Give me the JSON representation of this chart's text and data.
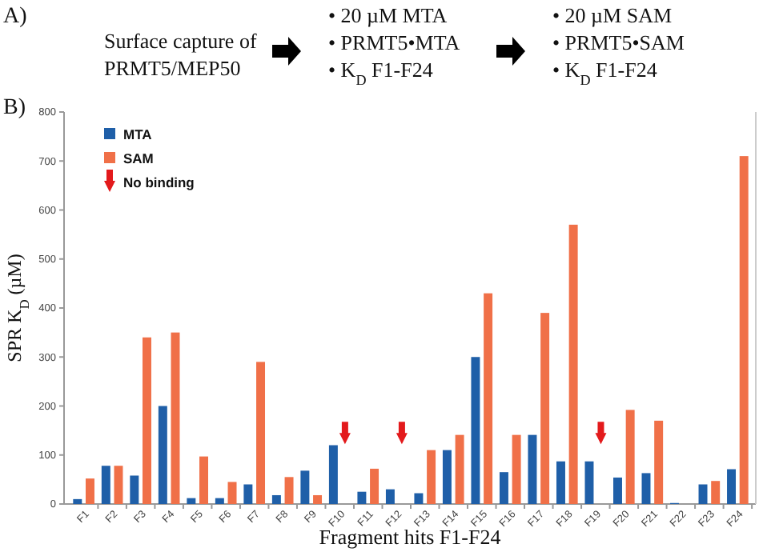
{
  "chart_data": {
    "type": "bar",
    "ylabel": "SPR K$_{D}$ (µM)",
    "xlabel": "Fragment hits F1-F24",
    "categories": [
      "F1",
      "F2",
      "F3",
      "F4",
      "F5",
      "F6",
      "F7",
      "F8",
      "F9",
      "F10",
      "F11",
      "F12",
      "F13",
      "F14",
      "F15",
      "F16",
      "F17",
      "F18",
      "F19",
      "F20",
      "F21",
      "F22",
      "F23",
      "F24"
    ],
    "series": [
      {
        "name": "MTA",
        "color": "#1f5fa8",
        "values": [
          10,
          78,
          58,
          200,
          12,
          12,
          40,
          18,
          68,
          120,
          25,
          30,
          22,
          110,
          300,
          65,
          141,
          87,
          87,
          54,
          63,
          2,
          40,
          71
        ]
      },
      {
        "name": "SAM",
        "color": "#f07048",
        "values": [
          52,
          78,
          340,
          350,
          97,
          45,
          290,
          55,
          18,
          null,
          72,
          null,
          110,
          141,
          430,
          141,
          390,
          570,
          null,
          192,
          170,
          null,
          47,
          710
        ]
      },
      {
        "name": "No binding",
        "type": "scatter",
        "color": "#e31a1c",
        "x": [
          "F10",
          "F12",
          "F19"
        ],
        "values": [
          145,
          145,
          145
        ]
      }
    ],
    "ylim": [
      0,
      800
    ],
    "yticks": [
      0,
      100,
      200,
      300,
      400,
      500,
      600,
      700,
      800
    ],
    "legend": "top left",
    "annotations": [
      "A)",
      "Surface capture of",
      "PRMT5/MEP50",
      "• 20 µM MTA",
      "• PRMT5•MTA",
      "• K$_{D}$ F1-F24",
      "• 20 µM SAM",
      "• PRMT5•SAM",
      "• K$_{D}$ F1-F24",
      "B)"
    ]
  }
}
